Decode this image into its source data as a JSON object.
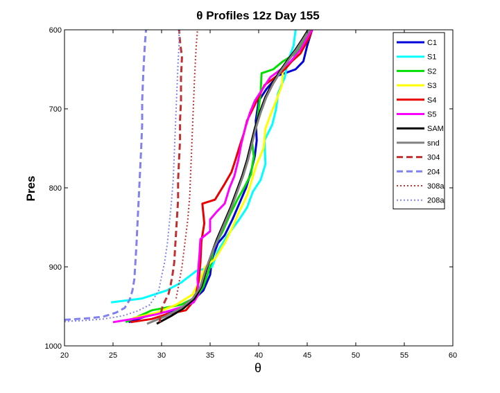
{
  "chart_data": {
    "type": "line",
    "title": "θ Profiles 12z Day 155",
    "xlabel": "θ",
    "ylabel": "Pres",
    "xlim": [
      20,
      60
    ],
    "ylim": [
      1000,
      600
    ],
    "y_reversed": true,
    "grid": false,
    "legend_position": "top-right",
    "x_ticks": [
      "20",
      "25",
      "30",
      "35",
      "40",
      "45",
      "50",
      "55",
      "60"
    ],
    "y_ticks": [
      "600",
      "700",
      "800",
      "900",
      "1000"
    ],
    "series": [
      {
        "name": "C1",
        "color": "#0000d8",
        "dash": "solid",
        "width": 3,
        "points": [
          [
            26.6,
            970
          ],
          [
            29,
            960
          ],
          [
            31.5,
            955
          ],
          [
            33,
            945
          ],
          [
            34.3,
            930
          ],
          [
            35,
            910
          ],
          [
            35.2,
            890
          ],
          [
            35.8,
            870
          ],
          [
            36.5,
            860
          ],
          [
            37.3,
            840
          ],
          [
            38,
            820
          ],
          [
            38.7,
            800
          ],
          [
            39.2,
            780
          ],
          [
            39.6,
            760
          ],
          [
            39.8,
            740
          ],
          [
            39.7,
            715
          ],
          [
            40,
            690
          ],
          [
            40.8,
            675
          ],
          [
            41.5,
            665
          ],
          [
            42,
            658
          ],
          [
            43.8,
            650
          ],
          [
            44.6,
            640
          ],
          [
            45,
            620
          ],
          [
            45.5,
            600
          ]
        ]
      },
      {
        "name": "S1",
        "color": "#00ffff",
        "dash": "solid",
        "width": 3,
        "points": [
          [
            24.8,
            945
          ],
          [
            28,
            940
          ],
          [
            30.5,
            930
          ],
          [
            32,
            920
          ],
          [
            33.6,
            905
          ],
          [
            35.2,
            900
          ],
          [
            35.8,
            880
          ],
          [
            36.8,
            860
          ],
          [
            38,
            840
          ],
          [
            38.8,
            825
          ],
          [
            39.4,
            805
          ],
          [
            40.2,
            790
          ],
          [
            40.7,
            770
          ],
          [
            40.6,
            740
          ],
          [
            41.4,
            720
          ],
          [
            41.8,
            700
          ],
          [
            42,
            680
          ],
          [
            42.7,
            660
          ],
          [
            43,
            640
          ],
          [
            43.6,
            620
          ],
          [
            43.8,
            600
          ]
        ]
      },
      {
        "name": "S2",
        "color": "#00e000",
        "dash": "solid",
        "width": 3,
        "points": [
          [
            26.3,
            970
          ],
          [
            29,
            955
          ],
          [
            32,
            948
          ],
          [
            33.6,
            938
          ],
          [
            34.3,
            925
          ],
          [
            35,
            900
          ],
          [
            35.4,
            875
          ],
          [
            36.3,
            855
          ],
          [
            37,
            835
          ],
          [
            37.8,
            815
          ],
          [
            38.5,
            800
          ],
          [
            39.2,
            783
          ],
          [
            39.5,
            760
          ],
          [
            39.3,
            740
          ],
          [
            39.8,
            720
          ],
          [
            40,
            700
          ],
          [
            40.2,
            680
          ],
          [
            40.3,
            655
          ],
          [
            41.5,
            650
          ],
          [
            42.5,
            640
          ],
          [
            43.8,
            630
          ],
          [
            44.8,
            610
          ],
          [
            45.3,
            600
          ]
        ]
      },
      {
        "name": "S3",
        "color": "#ffff00",
        "dash": "solid",
        "width": 3,
        "points": [
          [
            27,
            965
          ],
          [
            29.5,
            958
          ],
          [
            31.5,
            948
          ],
          [
            33.2,
            935
          ],
          [
            33.9,
            918
          ],
          [
            34.5,
            900
          ],
          [
            35.5,
            890
          ],
          [
            36.5,
            870
          ],
          [
            37.3,
            850
          ],
          [
            38,
            830
          ],
          [
            38.8,
            810
          ],
          [
            39.3,
            790
          ],
          [
            39.8,
            770
          ],
          [
            40.5,
            750
          ],
          [
            40.7,
            725
          ],
          [
            41.3,
            705
          ],
          [
            41.8,
            690
          ],
          [
            42.4,
            670
          ],
          [
            42.5,
            650
          ],
          [
            43.4,
            640
          ],
          [
            44.3,
            630
          ],
          [
            45,
            610
          ],
          [
            45.5,
            600
          ]
        ]
      },
      {
        "name": "S4",
        "color": "#e80000",
        "dash": "solid",
        "width": 3,
        "points": [
          [
            26.8,
            970
          ],
          [
            29,
            966
          ],
          [
            30.5,
            960
          ],
          [
            32.5,
            955
          ],
          [
            33.4,
            942
          ],
          [
            33.8,
            920
          ],
          [
            34,
            895
          ],
          [
            34.1,
            868
          ],
          [
            34.4,
            845
          ],
          [
            34.2,
            820
          ],
          [
            35.5,
            815
          ],
          [
            36,
            805
          ],
          [
            36.5,
            795
          ],
          [
            37.2,
            780
          ],
          [
            37.6,
            765
          ],
          [
            38.1,
            745
          ],
          [
            38.5,
            730
          ],
          [
            38.8,
            715
          ],
          [
            39.4,
            700
          ],
          [
            40,
            685
          ],
          [
            40.6,
            670
          ],
          [
            41.7,
            660
          ],
          [
            42.7,
            650
          ],
          [
            43.4,
            640
          ],
          [
            44.3,
            630
          ],
          [
            45.2,
            610
          ],
          [
            45.5,
            600
          ]
        ]
      },
      {
        "name": "S5",
        "color": "#ff00ff",
        "dash": "solid",
        "width": 3,
        "points": [
          [
            25,
            970
          ],
          [
            27.5,
            965
          ],
          [
            29.5,
            960
          ],
          [
            31,
            955
          ],
          [
            32.3,
            950
          ],
          [
            33.3,
            945
          ],
          [
            33.8,
            935
          ],
          [
            33.7,
            915
          ],
          [
            33.9,
            885
          ],
          [
            34,
            865
          ],
          [
            35,
            855
          ],
          [
            35,
            840
          ],
          [
            35.7,
            830
          ],
          [
            36.5,
            820
          ],
          [
            37,
            800
          ],
          [
            37.5,
            785
          ],
          [
            37.9,
            765
          ],
          [
            38.2,
            745
          ],
          [
            38.6,
            725
          ],
          [
            39.1,
            705
          ],
          [
            39.6,
            690
          ],
          [
            40.4,
            675
          ],
          [
            41.2,
            660
          ],
          [
            42.3,
            650
          ],
          [
            43.3,
            640
          ],
          [
            44.3,
            625
          ],
          [
            45,
            610
          ],
          [
            45.5,
            600
          ]
        ]
      },
      {
        "name": "SAM",
        "color": "#000000",
        "dash": "solid",
        "width": 3,
        "points": [
          [
            29.5,
            972
          ],
          [
            31,
            962
          ],
          [
            32.3,
            952
          ],
          [
            33.4,
            940
          ],
          [
            34.1,
            925
          ],
          [
            34.6,
            905
          ],
          [
            35.1,
            885
          ],
          [
            35.7,
            865
          ],
          [
            36.4,
            845
          ],
          [
            37.1,
            825
          ],
          [
            37.7,
            805
          ],
          [
            38.3,
            785
          ],
          [
            38.8,
            765
          ],
          [
            39.2,
            745
          ],
          [
            39.6,
            725
          ],
          [
            40.1,
            705
          ],
          [
            40.7,
            685
          ],
          [
            41.4,
            668
          ],
          [
            42.2,
            652
          ],
          [
            43,
            638
          ],
          [
            43.8,
            625
          ],
          [
            44.5,
            612
          ],
          [
            45.1,
            600
          ]
        ]
      },
      {
        "name": "snd",
        "color": "#808080",
        "dash": "solid",
        "width": 3,
        "points": [
          [
            28.5,
            972
          ],
          [
            30.5,
            962
          ],
          [
            32,
            952
          ],
          [
            33.2,
            940
          ],
          [
            34,
            925
          ],
          [
            34.5,
            905
          ],
          [
            35.1,
            885
          ],
          [
            35.8,
            865
          ],
          [
            36.5,
            845
          ],
          [
            37.2,
            825
          ],
          [
            37.8,
            805
          ],
          [
            38.4,
            785
          ],
          [
            38.9,
            765
          ],
          [
            39.3,
            745
          ],
          [
            39.7,
            725
          ],
          [
            40.2,
            705
          ],
          [
            40.8,
            685
          ],
          [
            41.5,
            668
          ],
          [
            42.3,
            652
          ],
          [
            43.1,
            638
          ],
          [
            43.9,
            625
          ],
          [
            44.6,
            612
          ],
          [
            45.2,
            600
          ]
        ]
      },
      {
        "name": "304",
        "color": "#c03030",
        "dash": "dash",
        "width": 3,
        "points": [
          [
            29.8,
            970
          ],
          [
            29.9,
            960
          ],
          [
            30.1,
            950
          ],
          [
            30.4,
            942
          ],
          [
            30.7,
            935
          ],
          [
            30.9,
            925
          ],
          [
            31.1,
            912
          ],
          [
            31.3,
            895
          ],
          [
            31.4,
            875
          ],
          [
            31.5,
            855
          ],
          [
            31.6,
            835
          ],
          [
            31.7,
            815
          ],
          [
            31.7,
            790
          ],
          [
            31.8,
            765
          ],
          [
            31.9,
            740
          ],
          [
            31.9,
            715
          ],
          [
            32,
            690
          ],
          [
            32,
            660
          ],
          [
            32.1,
            635
          ],
          [
            31.9,
            615
          ],
          [
            31.8,
            600
          ]
        ]
      },
      {
        "name": "204",
        "color": "#8080f0",
        "dash": "dash",
        "width": 3,
        "points": [
          [
            20,
            967
          ],
          [
            22.5,
            965
          ],
          [
            24,
            963
          ],
          [
            25.3,
            958
          ],
          [
            26.2,
            952
          ],
          [
            26.7,
            942
          ],
          [
            27,
            930
          ],
          [
            27.2,
            915
          ],
          [
            27.3,
            895
          ],
          [
            27.4,
            875
          ],
          [
            27.5,
            850
          ],
          [
            27.6,
            825
          ],
          [
            27.7,
            800
          ],
          [
            27.8,
            775
          ],
          [
            27.9,
            750
          ],
          [
            28,
            720
          ],
          [
            28,
            690
          ],
          [
            28.1,
            660
          ],
          [
            28.2,
            635
          ],
          [
            28.3,
            615
          ],
          [
            28.4,
            600
          ]
        ]
      },
      {
        "name": "308a",
        "color": "#c03030",
        "dash": "dot",
        "width": 2,
        "points": [
          [
            31.5,
            940
          ],
          [
            31.8,
            920
          ],
          [
            32.1,
            900
          ],
          [
            32.3,
            880
          ],
          [
            32.5,
            860
          ],
          [
            32.7,
            840
          ],
          [
            32.9,
            810
          ],
          [
            33,
            780
          ],
          [
            33.1,
            750
          ],
          [
            33.2,
            720
          ],
          [
            33.3,
            690
          ],
          [
            33.4,
            660
          ],
          [
            33.5,
            635
          ],
          [
            33.6,
            615
          ],
          [
            33.7,
            600
          ]
        ]
      },
      {
        "name": "208a",
        "color": "#8080f0",
        "dash": "dot",
        "width": 2,
        "points": [
          [
            20,
            969
          ],
          [
            22,
            968
          ],
          [
            24,
            966
          ],
          [
            26,
            962
          ],
          [
            27.5,
            956
          ],
          [
            28.8,
            948
          ],
          [
            29.7,
            930
          ],
          [
            30,
            912
          ],
          [
            30.3,
            895
          ],
          [
            30.6,
            870
          ],
          [
            30.8,
            845
          ],
          [
            31,
            820
          ],
          [
            31.2,
            790
          ],
          [
            31.3,
            760
          ],
          [
            31.4,
            730
          ],
          [
            31.5,
            700
          ],
          [
            31.6,
            670
          ],
          [
            31.7,
            640
          ],
          [
            31.8,
            620
          ],
          [
            31.8,
            600
          ]
        ]
      }
    ]
  }
}
